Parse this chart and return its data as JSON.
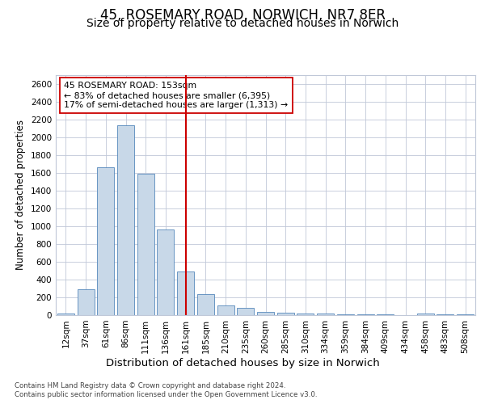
{
  "title": "45, ROSEMARY ROAD, NORWICH, NR7 8ER",
  "subtitle": "Size of property relative to detached houses in Norwich",
  "xlabel": "Distribution of detached houses by size in Norwich",
  "ylabel": "Number of detached properties",
  "categories": [
    "12sqm",
    "37sqm",
    "61sqm",
    "86sqm",
    "111sqm",
    "136sqm",
    "161sqm",
    "185sqm",
    "210sqm",
    "235sqm",
    "260sqm",
    "285sqm",
    "310sqm",
    "334sqm",
    "359sqm",
    "384sqm",
    "409sqm",
    "434sqm",
    "458sqm",
    "483sqm",
    "508sqm"
  ],
  "values": [
    20,
    290,
    1660,
    2130,
    1590,
    960,
    490,
    240,
    105,
    85,
    35,
    30,
    20,
    15,
    10,
    10,
    5,
    0,
    15,
    5,
    5
  ],
  "bar_color": "#c8d8e8",
  "bar_edge_color": "#5588bb",
  "vline_x_idx": 6,
  "vline_color": "#cc0000",
  "annotation_line1": "45 ROSEMARY ROAD: 153sqm",
  "annotation_line2": "← 83% of detached houses are smaller (6,395)",
  "annotation_line3": "17% of semi-detached houses are larger (1,313) →",
  "annotation_box_color": "#ffffff",
  "annotation_box_edge": "#cc0000",
  "ylim": [
    0,
    2700
  ],
  "yticks": [
    0,
    200,
    400,
    600,
    800,
    1000,
    1200,
    1400,
    1600,
    1800,
    2000,
    2200,
    2400,
    2600
  ],
  "footer1": "Contains HM Land Registry data © Crown copyright and database right 2024.",
  "footer2": "Contains public sector information licensed under the Open Government Licence v3.0.",
  "bg_color": "#ffffff",
  "grid_color": "#c0c8d8",
  "title_fontsize": 12,
  "subtitle_fontsize": 10,
  "tick_fontsize": 7.5,
  "ylabel_fontsize": 8.5,
  "xlabel_fontsize": 9.5,
  "footer_fontsize": 6.2,
  "annotation_fontsize": 7.8
}
